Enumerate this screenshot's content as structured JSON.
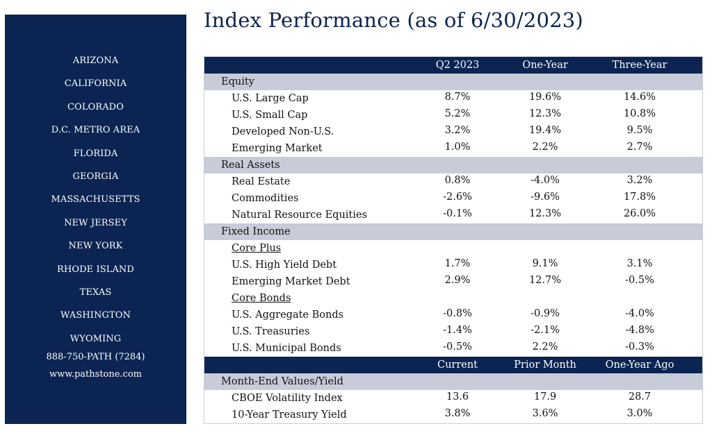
{
  "sidebar": {
    "states": [
      "ARIZONA",
      "CALIFORNIA",
      "COLORADO",
      "D.C. METRO AREA",
      "FLORIDA",
      "GEORGIA",
      "MASSACHUSETTS",
      "NEW JERSEY",
      "NEW YORK",
      "RHODE ISLAND",
      "TEXAS",
      "WASHINGTON",
      "WYOMING"
    ],
    "phone": "888-750-PATH (7284)",
    "website": "www.pathstone.com"
  },
  "title": "Index Performance (as of 6/30/2023)",
  "colors": {
    "navy": "#0b2452",
    "section_gray": "#c7ccd8"
  },
  "table": {
    "header1": [
      "Q2 2023",
      "One-Year",
      "Three-Year"
    ],
    "equity": {
      "label": "Equity",
      "rows": [
        {
          "name": "U.S. Large Cap",
          "q2": "8.7%",
          "one": "19.6%",
          "three": "14.6%"
        },
        {
          "name": "U.S. Small Cap",
          "q2": "5.2%",
          "one": "12.3%",
          "three": "10.8%"
        },
        {
          "name": "Developed Non-U.S.",
          "q2": "3.2%",
          "one": "19.4%",
          "three": "9.5%"
        },
        {
          "name": "Emerging Market",
          "q2": "1.0%",
          "one": "2.2%",
          "three": "2.7%"
        }
      ]
    },
    "real_assets": {
      "label": "Real Assets",
      "rows": [
        {
          "name": "Real Estate",
          "q2": "0.8%",
          "one": "-4.0%",
          "three": "3.2%"
        },
        {
          "name": "Commodities",
          "q2": "-2.6%",
          "one": "-9.6%",
          "three": "17.8%"
        },
        {
          "name": "Natural Resource Equities",
          "q2": "-0.1%",
          "one": "12.3%",
          "three": "26.0%"
        }
      ]
    },
    "fixed_income": {
      "label": "Fixed Income",
      "core_plus": "Core Plus",
      "core_plus_rows": [
        {
          "name": "U.S. High Yield Debt",
          "q2": "1.7%",
          "one": "9.1%",
          "three": "3.1%"
        },
        {
          "name": "Emerging Market Debt",
          "q2": "2.9%",
          "one": "12.7%",
          "three": "-0.5%"
        }
      ],
      "core_bonds": "Core Bonds",
      "core_bonds_rows": [
        {
          "name": "U.S. Aggregate Bonds",
          "q2": "-0.8%",
          "one": "-0.9%",
          "three": "-4.0%"
        },
        {
          "name": "U.S. Treasuries",
          "q2": "-1.4%",
          "one": "-2.1%",
          "three": "-4.8%"
        },
        {
          "name": "U.S. Municipal Bonds",
          "q2": "-0.5%",
          "one": "2.2%",
          "three": "-0.3%"
        }
      ]
    },
    "header2": [
      "Current",
      "Prior Month",
      "One-Year Ago"
    ],
    "month_end": {
      "label": "Month-End Values/Yield",
      "rows": [
        {
          "name": "CBOE Volatility Index",
          "cur": "13.6",
          "prior": "17.9",
          "ago": "28.7"
        },
        {
          "name": "10-Year Treasury Yield",
          "cur": "3.8%",
          "prior": "3.6%",
          "ago": "3.0%"
        }
      ]
    }
  }
}
